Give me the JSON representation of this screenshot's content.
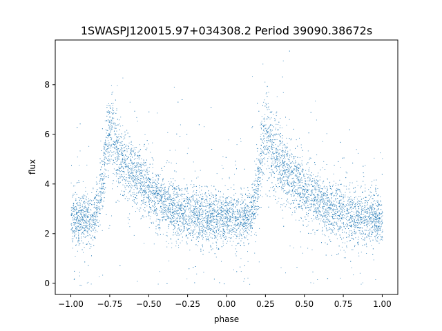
{
  "chart_data": {
    "type": "scatter",
    "title": "1SWASPJ120015.97+034308.2 Period 39090.38672s",
    "xlabel": "phase",
    "ylabel": "flux",
    "xlim": [
      -1.1,
      1.1
    ],
    "ylim": [
      -0.45,
      9.8
    ],
    "xticks": [
      -1.0,
      -0.75,
      -0.5,
      -0.25,
      0.0,
      0.25,
      0.5,
      0.75,
      1.0
    ],
    "xtick_labels": [
      "−1.00",
      "−0.75",
      "−0.50",
      "−0.25",
      "0.00",
      "0.25",
      "0.50",
      "0.75",
      "1.00"
    ],
    "yticks": [
      0,
      2,
      4,
      6,
      8
    ],
    "ytick_labels": [
      "0",
      "2",
      "4",
      "6",
      "8"
    ],
    "grid": false,
    "point_color": "#1f77b4",
    "series": [
      {
        "description_points": [
          {
            "x": -1.0,
            "y": 2.6
          },
          {
            "x": -0.9,
            "y": 2.6
          },
          {
            "x": -0.85,
            "y": 2.6
          },
          {
            "x": -0.8,
            "y": 4.0
          },
          {
            "x": -0.77,
            "y": 5.6
          },
          {
            "x": -0.75,
            "y": 6.2
          },
          {
            "x": -0.7,
            "y": 5.2
          },
          {
            "x": -0.6,
            "y": 4.4
          },
          {
            "x": -0.5,
            "y": 3.7
          },
          {
            "x": -0.4,
            "y": 3.2
          },
          {
            "x": -0.3,
            "y": 2.9
          },
          {
            "x": -0.2,
            "y": 2.75
          },
          {
            "x": -0.1,
            "y": 2.65
          },
          {
            "x": 0.0,
            "y": 2.6
          },
          {
            "x": 0.1,
            "y": 2.6
          },
          {
            "x": 0.15,
            "y": 2.6
          },
          {
            "x": 0.2,
            "y": 4.0
          },
          {
            "x": 0.23,
            "y": 5.6
          },
          {
            "x": 0.25,
            "y": 6.2
          },
          {
            "x": 0.3,
            "y": 5.2
          },
          {
            "x": 0.4,
            "y": 4.4
          },
          {
            "x": 0.5,
            "y": 3.7
          },
          {
            "x": 0.6,
            "y": 3.2
          },
          {
            "x": 0.7,
            "y": 2.9
          },
          {
            "x": 0.8,
            "y": 2.75
          },
          {
            "x": 0.9,
            "y": 2.65
          },
          {
            "x": 1.0,
            "y": 2.6
          }
        ]
      }
    ]
  }
}
